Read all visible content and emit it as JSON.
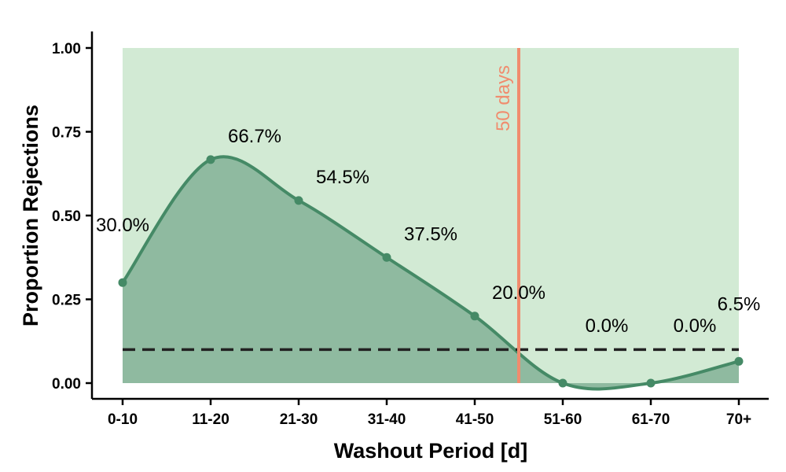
{
  "chart_data": {
    "type": "area",
    "xlabel": "Washout Period [d]",
    "ylabel": "Proportion Rejections",
    "categories": [
      "0-10",
      "11-20",
      "21-30",
      "31-40",
      "41-50",
      "51-60",
      "61-70",
      "70+"
    ],
    "values": [
      0.3,
      0.667,
      0.545,
      0.375,
      0.2,
      0.0,
      0.0,
      0.065
    ],
    "data_labels": [
      "30.0%",
      "66.7%",
      "54.5%",
      "37.5%",
      "20.0%",
      "0.0%",
      "0.0%",
      "6.5%"
    ],
    "ylim": [
      0,
      1.0
    ],
    "yticks": [
      0.0,
      0.25,
      0.5,
      0.75,
      1.0
    ],
    "ytick_labels": [
      "0.00",
      "0.25",
      "0.50",
      "0.75",
      "1.00"
    ],
    "reference_line": {
      "y": 0.1,
      "style": "dashed"
    },
    "marker": {
      "label": "50 days",
      "x_category_position": 4.5
    },
    "grid": false,
    "colors": {
      "background_band": "#d2ead4",
      "area_fill": "#8fbaa0",
      "line": "#458a66",
      "marker": "#f08c6e",
      "reference": "#222222"
    }
  }
}
